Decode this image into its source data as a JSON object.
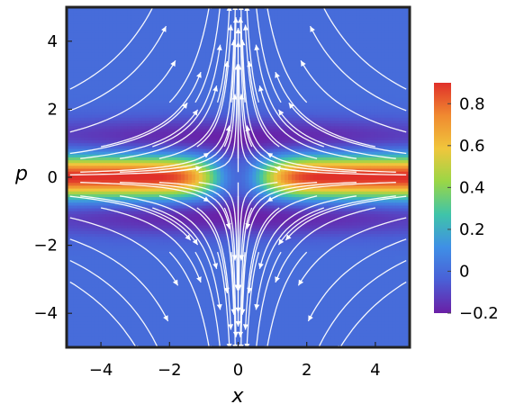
{
  "chart_data": {
    "type": "heatmap",
    "title": "",
    "xlabel": "x",
    "ylabel": "p",
    "xlim": [
      -5,
      5
    ],
    "ylim": [
      -5,
      5
    ],
    "x_ticks": [
      -4,
      -2,
      0,
      2,
      4
    ],
    "y_ticks": [
      -4,
      -2,
      0,
      2,
      4
    ],
    "x_tick_labels": [
      "−4",
      "−2",
      "0",
      "2",
      "4"
    ],
    "y_tick_labels": [
      "−4",
      "−2",
      "0",
      "2",
      "4"
    ],
    "colorbar": {
      "min": -0.2,
      "max": 0.9,
      "ticks": [
        -0.2,
        0,
        0.2,
        0.4,
        0.6,
        0.8
      ],
      "tick_labels": [
        "−0.2",
        "0",
        "0.2",
        "0.4",
        "0.6",
        "0.8"
      ],
      "colormap": "rainbow",
      "colors": [
        "#6a1fa6",
        "#4a5fd6",
        "#3f8fe6",
        "#3fc4a9",
        "#9ad646",
        "#f0c63c",
        "#f08a30",
        "#e0302a"
      ]
    },
    "overlay": {
      "type": "stream-vectors",
      "color": "#ffffff",
      "flow_direction": "outward from origin along p, inward toward origin along x"
    },
    "grid": false,
    "legend": "colorbar-right"
  }
}
